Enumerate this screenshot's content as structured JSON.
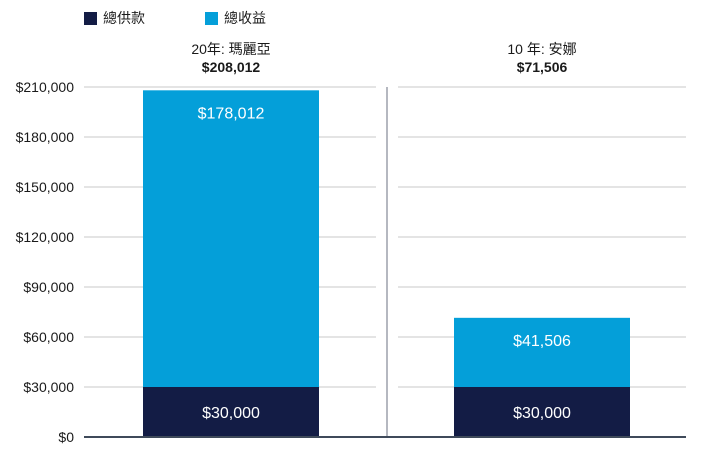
{
  "chart_data": {
    "type": "bar",
    "stacked": true,
    "categories": [
      "20年: 瑪麗亞",
      "10 年: 安娜"
    ],
    "category_totals": [
      "$208,012",
      "$71,506"
    ],
    "series": [
      {
        "name": "總供款",
        "values": [
          30000,
          30000
        ],
        "labels": [
          "$30,000",
          "$30,000"
        ],
        "color": "#131c45"
      },
      {
        "name": "總收益",
        "values": [
          178012,
          41506
        ],
        "labels": [
          "$178,012",
          "$41,506"
        ],
        "color": "#049fd9"
      }
    ],
    "ylim": [
      0,
      210000
    ],
    "yticks": [
      0,
      30000,
      60000,
      90000,
      120000,
      150000,
      180000,
      210000
    ],
    "ytick_labels": [
      "$0",
      "$30,000",
      "$60,000",
      "$90,000",
      "$120,000",
      "$150,000",
      "$180,000",
      "$210,000"
    ],
    "grid": true,
    "legend_position": "top-left",
    "title": "",
    "xlabel": "",
    "ylabel": ""
  }
}
